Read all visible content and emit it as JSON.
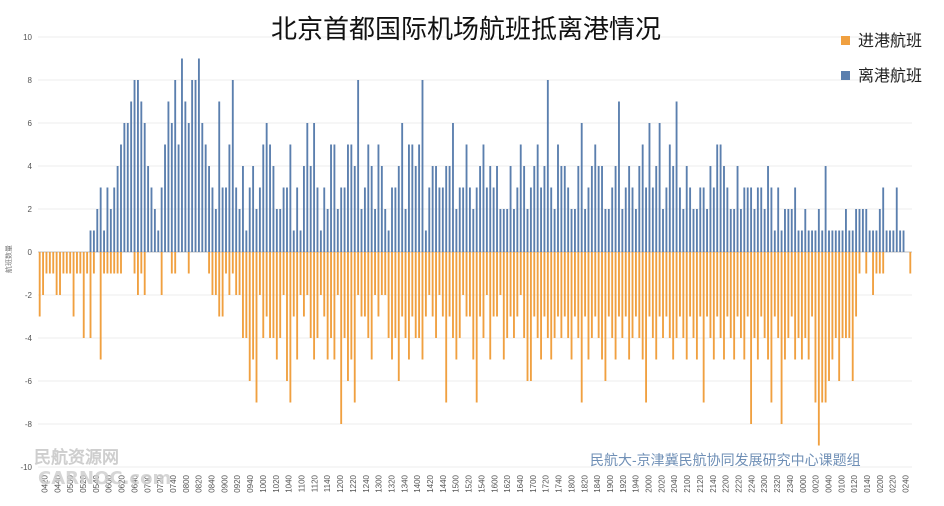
{
  "chart_data": {
    "type": "bar",
    "title": "北京首都国际机场航班抵离港情况",
    "ylabel": "航班数量",
    "ylim": [
      -10,
      10
    ],
    "yticks": [
      10,
      8,
      6,
      4,
      2,
      0,
      -2,
      -4,
      -6,
      -8,
      -10
    ],
    "grid": true,
    "legend_position": "top-right",
    "xtick_labels": [
      "0420",
      "0440",
      "0500",
      "0520",
      "0540",
      "0600",
      "0620",
      "0640",
      "0700",
      "0720",
      "0740",
      "0800",
      "0820",
      "0840",
      "0900",
      "0920",
      "0940",
      "1000",
      "1020",
      "1040",
      "1100",
      "1120",
      "1140",
      "1200",
      "1220",
      "1240",
      "1300",
      "1320",
      "1340",
      "1400",
      "1420",
      "1440",
      "1500",
      "1520",
      "1540",
      "1600",
      "1620",
      "1640",
      "1700",
      "1720",
      "1740",
      "1800",
      "1820",
      "1840",
      "1900",
      "1920",
      "1940",
      "2000",
      "2020",
      "2040",
      "2100",
      "2120",
      "2140",
      "2200",
      "2220",
      "2240",
      "2300",
      "2320",
      "2340",
      "0000",
      "0020",
      "0040",
      "0100",
      "0120",
      "0140",
      "0200",
      "0220",
      "0240"
    ],
    "series": [
      {
        "name": "进港航班",
        "color": "#f0a040",
        "values": [
          -3,
          -2,
          -1,
          -1,
          -1,
          -2,
          -2,
          -1,
          -1,
          -1,
          -3,
          -1,
          -1,
          -4,
          -1,
          -4,
          -1,
          0,
          -5,
          -1,
          -1,
          -1,
          -1,
          -1,
          -1,
          0,
          0,
          0,
          -1,
          -2,
          -1,
          -2,
          0,
          0,
          0,
          0,
          -2,
          0,
          0,
          -1,
          -1,
          0,
          0,
          0,
          -1,
          0,
          0,
          0,
          0,
          0,
          -1,
          -2,
          -2,
          -3,
          -3,
          -1,
          -2,
          -1,
          -2,
          -2,
          -4,
          -4,
          -6,
          -5,
          -7,
          -2,
          -4,
          -3,
          -4,
          -4,
          -5,
          -4,
          -2,
          -6,
          -7,
          -3,
          -5,
          -2,
          -3,
          -2,
          -4,
          -5,
          -4,
          -2,
          -3,
          -5,
          -4,
          -5,
          -2,
          -8,
          -4,
          -6,
          -5,
          -7,
          -2,
          -3,
          -3,
          -4,
          -5,
          -2,
          -3,
          -2,
          -2,
          -4,
          -5,
          -4,
          -6,
          -3,
          -4,
          -5,
          -3,
          -4,
          -4,
          -5,
          -3,
          -2,
          -3,
          -4,
          -2,
          -3,
          -7,
          -3,
          -4,
          -5,
          -4,
          -2,
          -3,
          -3,
          -5,
          -7,
          -3,
          -4,
          -2,
          -5,
          -3,
          -3,
          -2,
          -5,
          -4,
          -3,
          -4,
          -3,
          -2,
          -4,
          -6,
          -6,
          -3,
          -4,
          -5,
          -3,
          -4,
          -5,
          -4,
          -3,
          -4,
          -3,
          -4,
          -5,
          -3,
          -4,
          -7,
          -3,
          -5,
          -4,
          -3,
          -4,
          -5,
          -6,
          -3,
          -4,
          -5,
          -3,
          -4,
          -3,
          -5,
          -4,
          -3,
          -4,
          -5,
          -7,
          -3,
          -4,
          -5,
          -3,
          -4,
          -3,
          -4,
          -5,
          -4,
          -3,
          -4,
          -5,
          -3,
          -4,
          -5,
          -3,
          -7,
          -3,
          -4,
          -5,
          -3,
          -4,
          -5,
          -3,
          -4,
          -5,
          -3,
          -4,
          -5,
          -3,
          -8,
          -4,
          -5,
          -3,
          -4,
          -5,
          -7,
          -3,
          -4,
          -8,
          -5,
          -4,
          -3,
          -5,
          -4,
          -5,
          -4,
          -5,
          -3,
          -7,
          -9,
          -7,
          -7,
          -6,
          -5,
          -4,
          -6,
          -4,
          -4,
          -4,
          -6,
          -3,
          -1,
          0,
          -1,
          0,
          -2,
          -1,
          -1,
          -1,
          0,
          0,
          0,
          0,
          0,
          0,
          0,
          -1
        ],
        "note_id": "arrivals"
      },
      {
        "name": "离港航班",
        "color": "#5b7fae",
        "values": [
          0,
          0,
          0,
          0,
          0,
          0,
          0,
          0,
          0,
          0,
          0,
          0,
          0,
          0,
          0,
          1,
          1,
          2,
          3,
          1,
          3,
          2,
          3,
          4,
          5,
          6,
          6,
          7,
          8,
          8,
          7,
          6,
          4,
          3,
          2,
          1,
          3,
          5,
          7,
          6,
          8,
          5,
          9,
          7,
          6,
          8,
          8,
          9,
          6,
          5,
          4,
          3,
          2,
          7,
          3,
          3,
          5,
          8,
          3,
          2,
          4,
          1,
          3,
          4,
          2,
          3,
          5,
          6,
          5,
          4,
          2,
          2,
          3,
          3,
          5,
          1,
          3,
          1,
          4,
          6,
          4,
          6,
          3,
          1,
          3,
          2,
          5,
          5,
          2,
          3,
          3,
          5,
          5,
          4,
          8,
          2,
          3,
          5,
          4,
          2,
          5,
          4,
          2,
          1,
          3,
          3,
          4,
          6,
          2,
          5,
          5,
          4,
          5,
          8,
          1,
          3,
          4,
          4,
          3,
          3,
          4,
          4,
          6,
          2,
          3,
          3,
          5,
          3,
          2,
          3,
          4,
          5,
          3,
          4,
          3,
          4,
          2,
          2,
          2,
          4,
          2,
          3,
          5,
          4,
          2,
          3,
          4,
          5,
          3,
          4,
          8,
          3,
          2,
          5,
          4,
          4,
          3,
          2,
          2,
          4,
          6,
          2,
          3,
          4,
          5,
          4,
          4,
          2,
          2,
          3,
          4,
          7,
          2,
          3,
          4,
          3,
          2,
          4,
          5,
          3,
          6,
          3,
          4,
          6,
          2,
          3,
          5,
          4,
          7,
          3,
          2,
          4,
          3,
          2,
          2,
          3,
          3,
          2,
          4,
          3,
          5,
          5,
          4,
          3,
          2,
          2,
          4,
          2,
          3,
          3,
          3,
          2,
          3,
          3,
          2,
          4,
          3,
          1,
          3,
          1,
          2,
          2,
          2,
          3,
          1,
          1,
          2,
          1,
          1,
          1,
          2,
          1,
          4,
          1,
          1,
          1,
          1,
          1,
          2,
          1,
          1,
          2,
          2,
          2,
          2,
          1,
          1,
          1,
          2,
          3,
          1,
          1,
          1,
          3,
          1,
          1
        ],
        "note_id": "departures"
      }
    ]
  },
  "credit": "民航大-京津冀民航协同发展研究中心课题组",
  "watermark_text": "民航资源网",
  "watermark_logo_text": "CARNOC.com"
}
